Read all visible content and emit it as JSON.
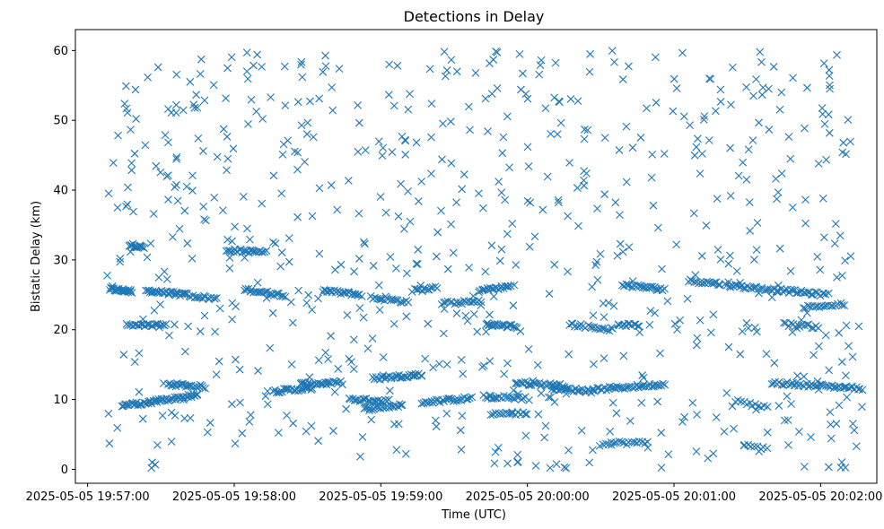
{
  "chart_data": {
    "type": "scatter",
    "title": "Detections in Delay",
    "xlabel": "Time (UTC)",
    "ylabel": "Bistatic Delay (km)",
    "marker": "x",
    "color": "#1f77b4",
    "grid": false,
    "legend": "none",
    "x_start": "2025-05-05 19:56:55",
    "xlim_seconds": [
      0,
      328
    ],
    "ylim": [
      -2,
      63
    ],
    "x_ticks": [
      {
        "s": 5,
        "label": "2025-05-05 19:57:00"
      },
      {
        "s": 65,
        "label": "2025-05-05 19:58:00"
      },
      {
        "s": 125,
        "label": "2025-05-05 19:59:00"
      },
      {
        "s": 185,
        "label": "2025-05-05 20:00:00"
      },
      {
        "s": 245,
        "label": "2025-05-05 20:01:00"
      },
      {
        "s": 305,
        "label": "2025-05-05 20:02:00"
      }
    ],
    "y_ticks": [
      0,
      10,
      20,
      30,
      40,
      50,
      60
    ],
    "tracks": [
      {
        "x0": 14,
        "x1": 23,
        "y0": 25.8,
        "y1": 25.5,
        "n": 24
      },
      {
        "x0": 22,
        "x1": 28,
        "y0": 32.2,
        "y1": 31.8,
        "n": 16
      },
      {
        "x0": 21,
        "x1": 37,
        "y0": 20.6,
        "y1": 20.6,
        "n": 26
      },
      {
        "x0": 19,
        "x1": 33,
        "y0": 9.2,
        "y1": 9.6,
        "n": 26
      },
      {
        "x0": 29,
        "x1": 45,
        "y0": 25.6,
        "y1": 25.0,
        "n": 30
      },
      {
        "x0": 33,
        "x1": 50,
        "y0": 9.8,
        "y1": 10.6,
        "n": 30
      },
      {
        "x0": 38,
        "x1": 53,
        "y0": 12.2,
        "y1": 11.8,
        "n": 24
      },
      {
        "x0": 45,
        "x1": 58,
        "y0": 25.0,
        "y1": 24.4,
        "n": 18
      },
      {
        "x0": 62,
        "x1": 78,
        "y0": 31.4,
        "y1": 31.1,
        "n": 26
      },
      {
        "x0": 69,
        "x1": 86,
        "y0": 25.8,
        "y1": 24.9,
        "n": 26
      },
      {
        "x0": 81,
        "x1": 97,
        "y0": 11.2,
        "y1": 11.6,
        "n": 26
      },
      {
        "x0": 92,
        "x1": 109,
        "y0": 12.2,
        "y1": 12.4,
        "n": 26
      },
      {
        "x0": 101,
        "x1": 117,
        "y0": 25.6,
        "y1": 25.0,
        "n": 24
      },
      {
        "x0": 112,
        "x1": 128,
        "y0": 10.0,
        "y1": 9.8,
        "n": 24
      },
      {
        "x0": 118,
        "x1": 134,
        "y0": 8.6,
        "y1": 9.2,
        "n": 24
      },
      {
        "x0": 122,
        "x1": 142,
        "y0": 13.0,
        "y1": 13.6,
        "n": 32
      },
      {
        "x0": 121,
        "x1": 136,
        "y0": 24.6,
        "y1": 24.0,
        "n": 20
      },
      {
        "x0": 138,
        "x1": 148,
        "y0": 25.6,
        "y1": 26.0,
        "n": 14
      },
      {
        "x0": 142,
        "x1": 162,
        "y0": 9.6,
        "y1": 10.2,
        "n": 28
      },
      {
        "x0": 150,
        "x1": 166,
        "y0": 23.8,
        "y1": 24.0,
        "n": 20
      },
      {
        "x0": 165,
        "x1": 178,
        "y0": 25.6,
        "y1": 26.2,
        "n": 20
      },
      {
        "x0": 168,
        "x1": 181,
        "y0": 20.8,
        "y1": 20.4,
        "n": 24
      },
      {
        "x0": 167,
        "x1": 184,
        "y0": 10.4,
        "y1": 10.2,
        "n": 22
      },
      {
        "x0": 170,
        "x1": 185,
        "y0": 8.0,
        "y1": 8.0,
        "n": 16
      },
      {
        "x0": 180,
        "x1": 200,
        "y0": 12.4,
        "y1": 12.0,
        "n": 30
      },
      {
        "x0": 195,
        "x1": 212,
        "y0": 11.6,
        "y1": 11.2,
        "n": 26
      },
      {
        "x0": 202,
        "x1": 220,
        "y0": 20.8,
        "y1": 20.0,
        "n": 22
      },
      {
        "x0": 212,
        "x1": 241,
        "y0": 11.4,
        "y1": 12.2,
        "n": 40
      },
      {
        "x0": 216,
        "x1": 234,
        "y0": 3.8,
        "y1": 3.8,
        "n": 18
      },
      {
        "x0": 222,
        "x1": 231,
        "y0": 20.8,
        "y1": 20.6,
        "n": 12
      },
      {
        "x0": 224,
        "x1": 241,
        "y0": 26.4,
        "y1": 25.8,
        "n": 26
      },
      {
        "x0": 251,
        "x1": 264,
        "y0": 27.0,
        "y1": 26.6,
        "n": 18
      },
      {
        "x0": 266,
        "x1": 308,
        "y0": 26.4,
        "y1": 25.0,
        "n": 56
      },
      {
        "x0": 285,
        "x1": 322,
        "y0": 12.4,
        "y1": 11.6,
        "n": 48
      },
      {
        "x0": 290,
        "x1": 304,
        "y0": 20.8,
        "y1": 20.4,
        "n": 16
      },
      {
        "x0": 298,
        "x1": 314,
        "y0": 23.2,
        "y1": 23.6,
        "n": 18
      },
      {
        "x0": 270,
        "x1": 283,
        "y0": 9.8,
        "y1": 8.8,
        "n": 12
      },
      {
        "x0": 274,
        "x1": 283,
        "y0": 3.4,
        "y1": 3.0,
        "n": 8
      }
    ],
    "scatter": {
      "count": 700,
      "x_range": [
        13,
        322
      ],
      "y_range": [
        0,
        60
      ]
    }
  }
}
